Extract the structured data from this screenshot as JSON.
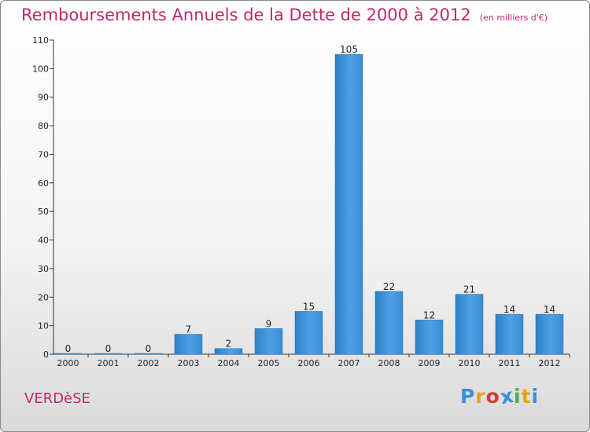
{
  "title": "Remboursements Annuels de la Dette de 2000 à 2012",
  "subtitle": "(en milliers d'€)",
  "commune": "VERDèSE",
  "logo": [
    "P",
    "r",
    "o",
    "x",
    "i",
    "t",
    "i"
  ],
  "logo_colors": [
    "#3a8fd8",
    "#e8a317",
    "#d63b2f",
    "#3a8fd8",
    "#4caf50",
    "#e8a317",
    "#3a8fd8"
  ],
  "chart_data": {
    "type": "bar",
    "categories": [
      "2000",
      "2001",
      "2002",
      "2003",
      "2004",
      "2005",
      "2006",
      "2007",
      "2008",
      "2009",
      "2010",
      "2011",
      "2012"
    ],
    "values": [
      0,
      0,
      0,
      7,
      2,
      9,
      15,
      105,
      22,
      12,
      21,
      14,
      14
    ],
    "ylim": [
      0,
      110
    ],
    "yticks": [
      0,
      10,
      20,
      30,
      40,
      50,
      60,
      70,
      80,
      90,
      100,
      110
    ],
    "bar_color": "#3d8fd6",
    "grid": false
  }
}
